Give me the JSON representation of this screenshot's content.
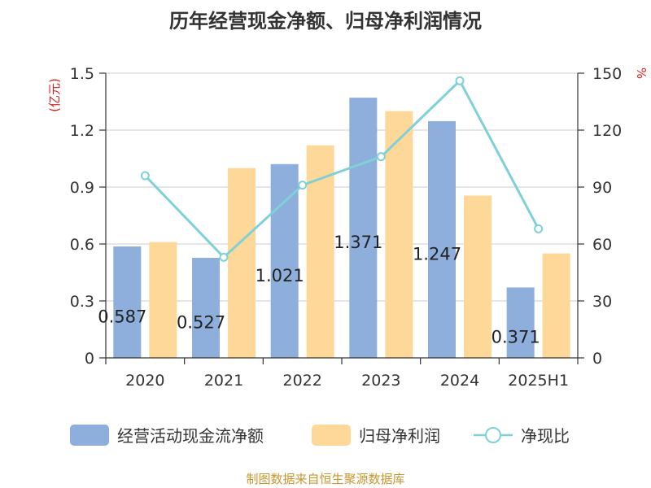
{
  "title": "历年经营现金净额、归母净利润情况",
  "source": "制图数据来自恒生聚源数据库",
  "chart_data": {
    "type": "bar",
    "title": "历年经营现金净额、归母净利润情况",
    "categories": [
      "2020",
      "2021",
      "2022",
      "2023",
      "2024",
      "2025H1"
    ],
    "y_left": {
      "unit": "(亿元)",
      "ylim": [
        0,
        1.5
      ],
      "ticks": [
        "0",
        "0.3",
        "0.6",
        "0.9",
        "1.2",
        "1.5"
      ],
      "tick_values": [
        0,
        0.3,
        0.6,
        0.9,
        1.2,
        1.5
      ]
    },
    "y_right": {
      "unit": "%",
      "ylim": [
        0,
        150
      ],
      "ticks": [
        "0",
        "30",
        "60",
        "90",
        "120",
        "150"
      ],
      "tick_values": [
        0,
        30,
        60,
        90,
        120,
        150
      ]
    },
    "series": [
      {
        "name": "经营活动现金流净额",
        "type": "bar",
        "axis": "left",
        "color": "#8eaedc",
        "values": [
          0.587,
          0.527,
          1.021,
          1.371,
          1.247,
          0.371
        ],
        "labels": [
          "0.587",
          "0.527",
          "1.021",
          "1.371",
          "1.247",
          "0.371"
        ]
      },
      {
        "name": "归母净利润",
        "type": "bar",
        "axis": "left",
        "color": "#fed898",
        "values": [
          0.61,
          1.0,
          1.12,
          1.3,
          0.855,
          0.55
        ]
      },
      {
        "name": "净现比",
        "type": "line",
        "axis": "right",
        "color": "#80d0d8",
        "values": [
          96,
          53,
          91,
          106,
          146,
          68
        ]
      }
    ],
    "grid": true,
    "legend_position": "bottom"
  }
}
